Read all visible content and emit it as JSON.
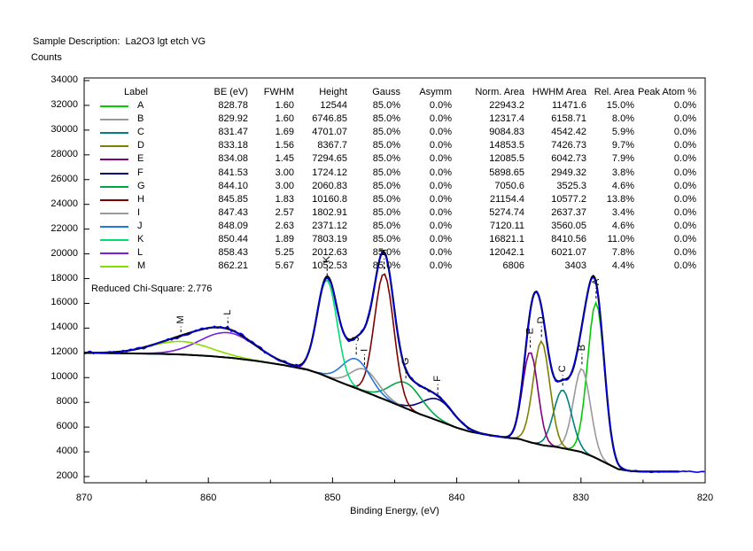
{
  "header": {
    "sample_description": "Sample Description:  La2O3 lgt etch VG"
  },
  "axes": {
    "y_title": "Counts",
    "x_title": "Binding Energy, (eV)"
  },
  "annotations": {
    "chi_square": "Reduced Chi-Square: 2.776"
  },
  "table": {
    "headers": [
      "Label",
      "BE (eV)",
      "FWHM",
      "Height",
      "Gauss",
      "Asymm",
      "Norm. Area",
      "HWHM Area",
      "Rel. Area",
      "Peak Atom %"
    ]
  },
  "chart_data": {
    "type": "line",
    "title": "Sample Description:  La2O3 lgt etch VG",
    "xlabel": "Binding Energy, (eV)",
    "ylabel": "Counts",
    "x_axis_inverted": true,
    "x_range": [
      870,
      820
    ],
    "y_range": [
      2000,
      34000
    ],
    "x_ticks": [
      870,
      860,
      850,
      840,
      830,
      820
    ],
    "x_minor_ticks": [
      865,
      855,
      845,
      835,
      825
    ],
    "y_ticks": [
      2000,
      4000,
      6000,
      8000,
      10000,
      12000,
      14000,
      16000,
      18000,
      20000,
      22000,
      24000,
      26000,
      28000,
      30000,
      32000,
      34000
    ],
    "reduced_chi_square": 2.776,
    "colors": {
      "raw_data": "#0000E0",
      "envelope": "#000000",
      "baseline": "#000000",
      "frame": "#000000"
    },
    "fit_x_end": 822,
    "components": [
      {
        "label": "A",
        "color": "#00CC00",
        "be": "828.78",
        "fwhm": "1.60",
        "height": "12544",
        "gauss": "85.0%",
        "asymm": "0.0%",
        "norm_area": "22943.2",
        "hwhm_area": "11471.6",
        "rel_area": "15.0%",
        "peak_atom_pct": "0.0%"
      },
      {
        "label": "B",
        "color": "#999999",
        "be": "829.92",
        "fwhm": "1.60",
        "height": "6746.85",
        "gauss": "85.0%",
        "asymm": "0.0%",
        "norm_area": "12317.4",
        "hwhm_area": "6158.71",
        "rel_area": "8.0%",
        "peak_atom_pct": "0.0%"
      },
      {
        "label": "C",
        "color": "#008080",
        "be": "831.47",
        "fwhm": "1.69",
        "height": "4701.07",
        "gauss": "85.0%",
        "asymm": "0.0%",
        "norm_area": "9084.83",
        "hwhm_area": "4542.42",
        "rel_area": "5.9%",
        "peak_atom_pct": "0.0%"
      },
      {
        "label": "D",
        "color": "#808000",
        "be": "833.18",
        "fwhm": "1.56",
        "height": "8367.7",
        "gauss": "85.0%",
        "asymm": "0.0%",
        "norm_area": "14853.5",
        "hwhm_area": "7426.73",
        "rel_area": "9.7%",
        "peak_atom_pct": "0.0%"
      },
      {
        "label": "E",
        "color": "#800080",
        "be": "834.08",
        "fwhm": "1.45",
        "height": "7294.65",
        "gauss": "85.0%",
        "asymm": "0.0%",
        "norm_area": "12085.5",
        "hwhm_area": "6042.73",
        "rel_area": "7.9%",
        "peak_atom_pct": "0.0%"
      },
      {
        "label": "F",
        "color": "#000080",
        "be": "841.53",
        "fwhm": "3.00",
        "height": "1724.12",
        "gauss": "85.0%",
        "asymm": "0.0%",
        "norm_area": "5898.65",
        "hwhm_area": "2949.32",
        "rel_area": "3.8%",
        "peak_atom_pct": "0.0%"
      },
      {
        "label": "G",
        "color": "#00A544",
        "be": "844.10",
        "fwhm": "3.00",
        "height": "2060.83",
        "gauss": "85.0%",
        "asymm": "0.0%",
        "norm_area": "7050.6",
        "hwhm_area": "3525.3",
        "rel_area": "4.6%",
        "peak_atom_pct": "0.0%"
      },
      {
        "label": "H",
        "color": "#7F0000",
        "be": "845.85",
        "fwhm": "1.83",
        "height": "10160.8",
        "gauss": "85.0%",
        "asymm": "0.0%",
        "norm_area": "21154.4",
        "hwhm_area": "10577.2",
        "rel_area": "13.8%",
        "peak_atom_pct": "0.0%"
      },
      {
        "label": "I",
        "color": "#999999",
        "be": "847.43",
        "fwhm": "2.57",
        "height": "1802.91",
        "gauss": "85.0%",
        "asymm": "0.0%",
        "norm_area": "5274.74",
        "hwhm_area": "2637.37",
        "rel_area": "3.4%",
        "peak_atom_pct": "0.0%"
      },
      {
        "label": "J",
        "color": "#2277DD",
        "be": "848.09",
        "fwhm": "2.63",
        "height": "2371.12",
        "gauss": "85.0%",
        "asymm": "0.0%",
        "norm_area": "7120.11",
        "hwhm_area": "3560.05",
        "rel_area": "4.6%",
        "peak_atom_pct": "0.0%"
      },
      {
        "label": "K",
        "color": "#00DD77",
        "be": "850.44",
        "fwhm": "1.89",
        "height": "7803.19",
        "gauss": "85.0%",
        "asymm": "0.0%",
        "norm_area": "16821.1",
        "hwhm_area": "8410.56",
        "rel_area": "11.0%",
        "peak_atom_pct": "0.0%"
      },
      {
        "label": "L",
        "color": "#7720E0",
        "be": "858.43",
        "fwhm": "5.25",
        "height": "2012.63",
        "gauss": "85.0%",
        "asymm": "0.0%",
        "norm_area": "12042.1",
        "hwhm_area": "6021.07",
        "rel_area": "7.8%",
        "peak_atom_pct": "0.0%"
      },
      {
        "label": "M",
        "color": "#88DD00",
        "be": "862.21",
        "fwhm": "5.67",
        "height": "1052.53",
        "gauss": "85.0%",
        "asymm": "0.0%",
        "norm_area": "6806",
        "hwhm_area": "3403",
        "rel_area": "4.4%",
        "peak_atom_pct": "0.0%"
      }
    ],
    "baseline_points": [
      [
        870,
        12000
      ],
      [
        866,
        11950
      ],
      [
        864,
        11920
      ],
      [
        862,
        11860
      ],
      [
        860,
        11750
      ],
      [
        858,
        11580
      ],
      [
        856,
        11330
      ],
      [
        854,
        11020
      ],
      [
        852,
        10630
      ],
      [
        851,
        10300
      ],
      [
        850,
        9880
      ],
      [
        849,
        9480
      ],
      [
        848,
        9100
      ],
      [
        847,
        8700
      ],
      [
        846,
        8300
      ],
      [
        845,
        7900
      ],
      [
        844,
        7480
      ],
      [
        843,
        7060
      ],
      [
        842,
        6700
      ],
      [
        841,
        6330
      ],
      [
        840,
        5950
      ],
      [
        839,
        5650
      ],
      [
        838,
        5450
      ],
      [
        837,
        5290
      ],
      [
        836,
        5150
      ],
      [
        835,
        5050
      ],
      [
        834,
        4750
      ],
      [
        833,
        4520
      ],
      [
        832,
        4400
      ],
      [
        831,
        4200
      ],
      [
        830,
        4000
      ],
      [
        829,
        3600
      ],
      [
        828,
        3100
      ],
      [
        827,
        2600
      ],
      [
        826,
        2450
      ],
      [
        825,
        2400
      ],
      [
        822,
        2400
      ],
      [
        820,
        2400
      ]
    ]
  }
}
